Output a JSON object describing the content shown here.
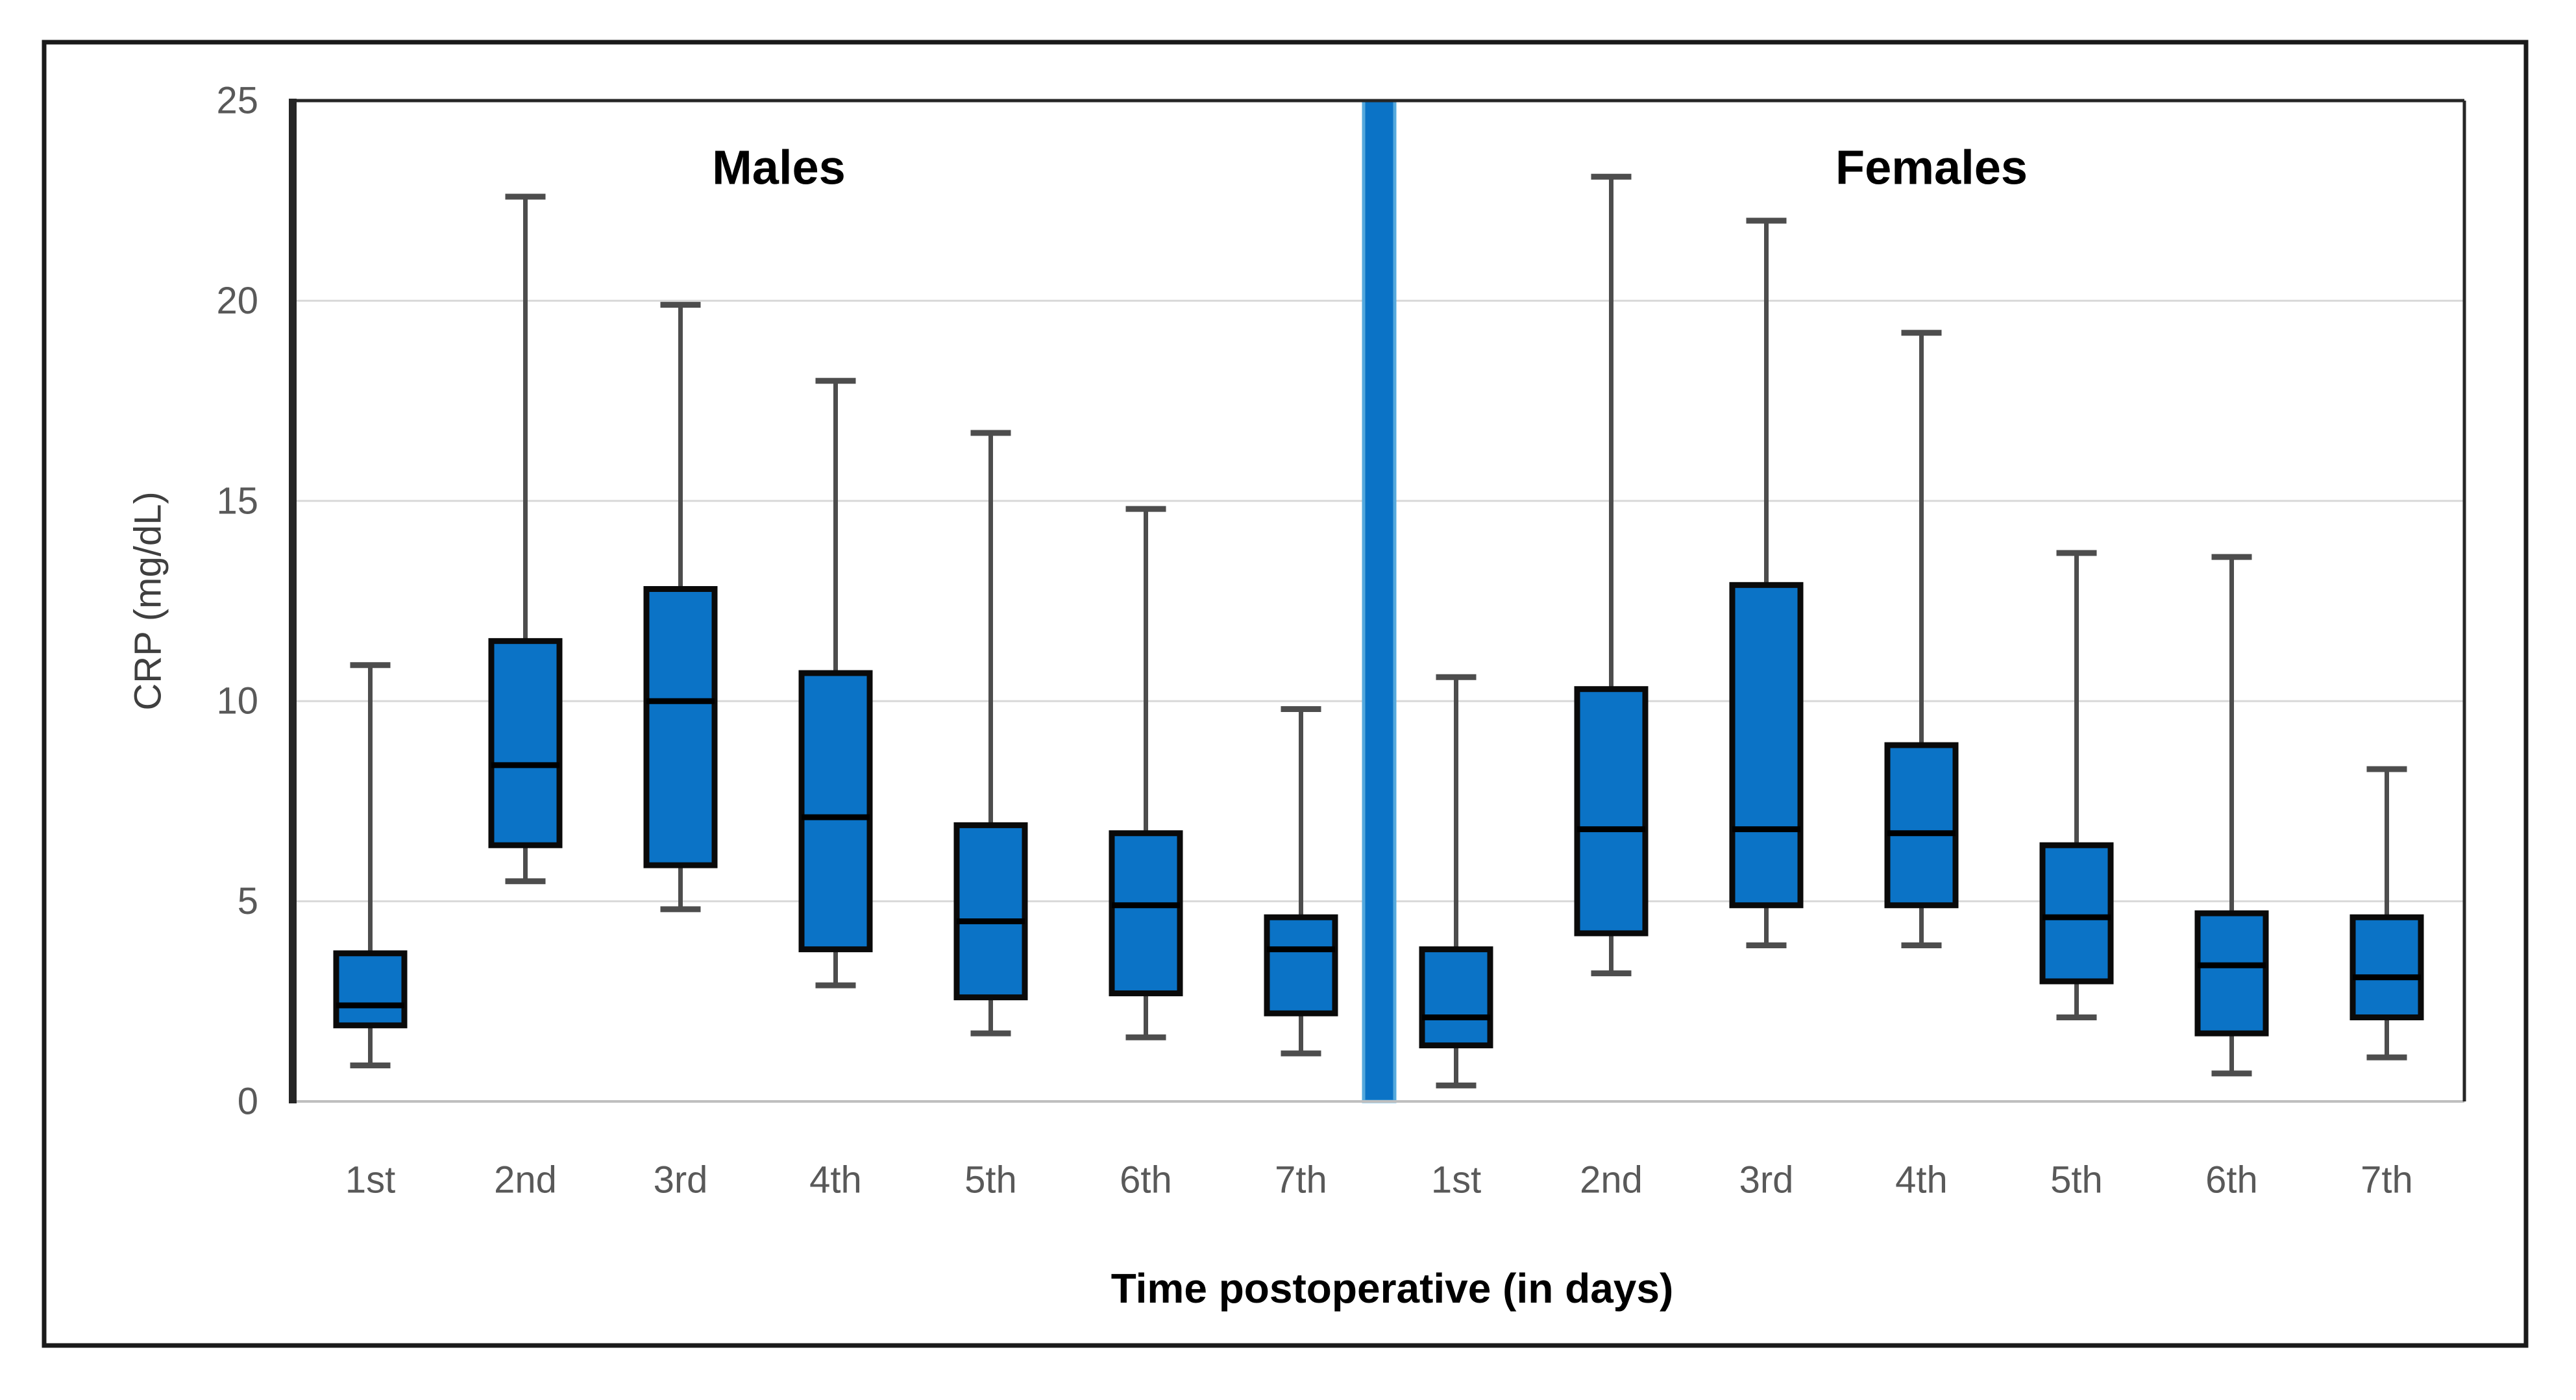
{
  "chart_data": {
    "type": "box",
    "title": "",
    "xlabel": "Time postoperative (in days)",
    "ylabel": "CRP (mg/dL)",
    "ylim": [
      0,
      25
    ],
    "yticks": [
      0,
      5,
      10,
      15,
      20,
      25
    ],
    "grid": true,
    "legend_position": "none",
    "categories": [
      "1st",
      "2nd",
      "3rd",
      "4th",
      "5th",
      "6th",
      "7th"
    ],
    "groups": [
      {
        "name": "Males",
        "boxes": [
          {
            "category": "1st",
            "min": 0.9,
            "q1": 1.9,
            "median": 2.4,
            "q3": 3.7,
            "max": 10.9
          },
          {
            "category": "2nd",
            "min": 5.5,
            "q1": 6.4,
            "median": 8.4,
            "q3": 11.5,
            "max": 22.6
          },
          {
            "category": "3rd",
            "min": 4.8,
            "q1": 5.9,
            "median": 10.0,
            "q3": 12.8,
            "max": 19.9
          },
          {
            "category": "4th",
            "min": 2.9,
            "q1": 3.8,
            "median": 7.1,
            "q3": 10.7,
            "max": 18.0
          },
          {
            "category": "5th",
            "min": 1.7,
            "q1": 2.6,
            "median": 4.5,
            "q3": 6.9,
            "max": 16.7
          },
          {
            "category": "6th",
            "min": 1.6,
            "q1": 2.7,
            "median": 4.9,
            "q3": 6.7,
            "max": 14.8
          },
          {
            "category": "7th",
            "min": 1.2,
            "q1": 2.2,
            "median": 3.8,
            "q3": 4.6,
            "max": 9.8
          }
        ]
      },
      {
        "name": "Females",
        "boxes": [
          {
            "category": "1st",
            "min": 0.4,
            "q1": 1.4,
            "median": 2.1,
            "q3": 3.8,
            "max": 10.6
          },
          {
            "category": "2nd",
            "min": 3.2,
            "q1": 4.2,
            "median": 6.8,
            "q3": 10.3,
            "max": 23.1
          },
          {
            "category": "3rd",
            "min": 3.9,
            "q1": 4.9,
            "median": 6.8,
            "q3": 12.9,
            "max": 22.0
          },
          {
            "category": "4th",
            "min": 3.9,
            "q1": 4.9,
            "median": 6.7,
            "q3": 8.9,
            "max": 19.2
          },
          {
            "category": "5th",
            "min": 2.1,
            "q1": 3.0,
            "median": 4.6,
            "q3": 6.4,
            "max": 13.7
          },
          {
            "category": "6th",
            "min": 0.7,
            "q1": 1.7,
            "median": 3.4,
            "q3": 4.7,
            "max": 13.6
          },
          {
            "category": "7th",
            "min": 1.1,
            "q1": 2.1,
            "median": 3.1,
            "q3": 4.6,
            "max": 8.3
          }
        ]
      }
    ]
  },
  "theme": {
    "box_fill": "#0B73C6",
    "box_border": "#0a0a0a",
    "median_color": "#000000",
    "whisker_color": "#4d4d4d",
    "gridline_color": "#d9d9d9",
    "zero_axis_color": "#bfbfbf",
    "plot_border_color": "#262626",
    "outer_border_color": "#1a1a1a",
    "divider_fill": "#0B73C6",
    "divider_edge": "#55a9dd",
    "tick_text_color": "#595959",
    "axis_title_color": "#000000",
    "ylabel_color": "#3f3f3f",
    "background": "#ffffff"
  }
}
